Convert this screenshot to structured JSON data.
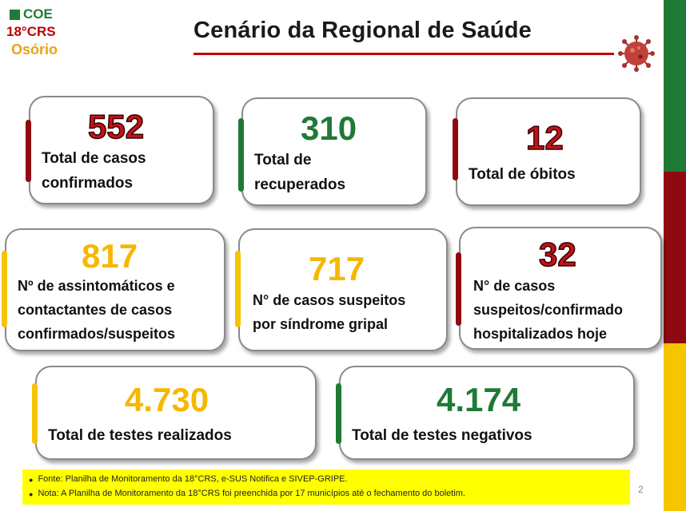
{
  "logo": {
    "line1": "COE",
    "line2": "18°CRS",
    "line3": "Osório"
  },
  "title": "Cenário da Regional de Saúde",
  "cards": {
    "confirmed": {
      "value": "552",
      "label1": "Total de casos",
      "label2": "confirmados"
    },
    "recovered": {
      "value": "310",
      "label1": "Total de",
      "label2": "recuperados"
    },
    "deaths": {
      "value": "12",
      "label": "Total de óbitos"
    },
    "asymptomatic": {
      "value": "817",
      "label1": "Nº de assintomáticos e",
      "label2": "contactantes de casos",
      "label3": "confirmados/suspeitos"
    },
    "suspected_flu": {
      "value": "717",
      "label1": "N° de casos suspeitos",
      "label2": "por síndrome gripal"
    },
    "hospitalized": {
      "value": "32",
      "label1": "N° de casos",
      "label2": "suspeitos/confirmado",
      "label3": "hospitalizados hoje"
    },
    "tests_done": {
      "value": "4.730",
      "label": "Total de testes realizados"
    },
    "tests_negative": {
      "value": "4.174",
      "label": "Total de testes negativos"
    }
  },
  "footnote": {
    "source": "Fonte: Planilha de Monitoramento da 18°CRS, e-SUS Notifica e SIVEP-GRIPE.",
    "note": "Nota: A Planilha de Monitoramento  da 18°CRS foi preenchida por 17 municípios até o fechamento do boletim."
  },
  "page_number": "2",
  "colors": {
    "green": "#1f7a35",
    "red": "#8f0a10",
    "yellow": "#f7c400",
    "number_red": "#c0141a",
    "number_green": "#1f7a35",
    "number_yellow": "#f5b800"
  }
}
